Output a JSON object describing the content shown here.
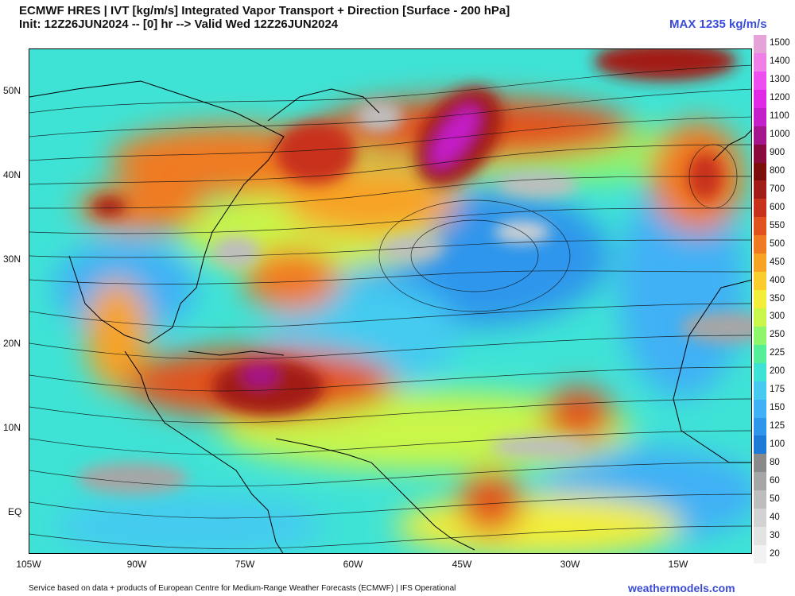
{
  "header": {
    "title_line1": "ECMWF HRES | IVT [kg/m/s] Integrated Vapor Transport + Direction [Surface - 200 hPa]",
    "title_line2": "Init: 12Z26JUN2024 -- [0] hr --> Valid Wed 12Z26JUN2024",
    "max_label": "MAX 1235 kg/m/s"
  },
  "axes": {
    "lat_labels": [
      "50N",
      "40N",
      "30N",
      "20N",
      "10N",
      "EQ"
    ],
    "lon_labels": [
      "105W",
      "90W",
      "75W",
      "60W",
      "45W",
      "30W",
      "15W"
    ]
  },
  "colorbar": {
    "levels": [
      "20",
      "30",
      "40",
      "50",
      "60",
      "80",
      "100",
      "125",
      "150",
      "175",
      "200",
      "225",
      "250",
      "300",
      "350",
      "400",
      "450",
      "500",
      "550",
      "600",
      "700",
      "800",
      "900",
      "1000",
      "1100",
      "1200",
      "1300",
      "1400",
      "1500"
    ],
    "colors": [
      "#f2f2f2",
      "#e3e3e3",
      "#d2d2d2",
      "#bdbdbd",
      "#a6a6a6",
      "#8a8a8a",
      "#1e7ad6",
      "#2f96ec",
      "#3fb1f5",
      "#45cbf0",
      "#3fe3d6",
      "#55ef9a",
      "#8ff56a",
      "#c9f64a",
      "#f2ee3a",
      "#f9cd2e",
      "#f7a326",
      "#f07a22",
      "#e2521f",
      "#c8321d",
      "#a21c18",
      "#7d0c0c",
      "#8a0a3e",
      "#a5158c",
      "#c41fc8",
      "#e02ae6",
      "#ee4df0",
      "#f07fe8",
      "#e6a3d8"
    ]
  },
  "footer": {
    "attribution": "Service based on data + products of European Centre for Medium-Range Weather Forecasts (ECMWF) | IFS Operational",
    "brand": "weathermodels.com"
  }
}
